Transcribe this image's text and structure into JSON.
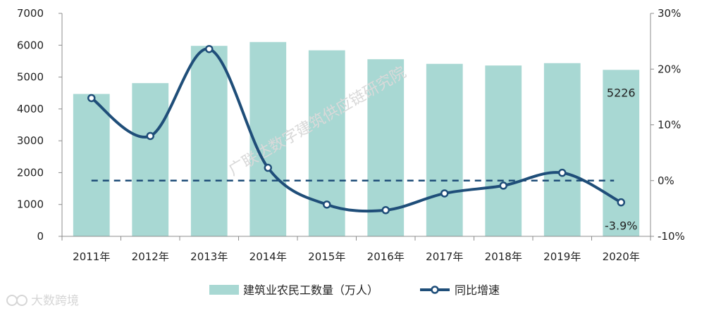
{
  "chart_data": {
    "type": "bar",
    "categories": [
      "2011年",
      "2012年",
      "2013年",
      "2014年",
      "2015年",
      "2016年",
      "2017年",
      "2018年",
      "2019年",
      "2020年"
    ],
    "series": [
      {
        "name": "建筑业农民工数量（万人）",
        "type": "bar",
        "axis": "left",
        "values": [
          4470,
          4810,
          5980,
          6100,
          5840,
          5560,
          5415,
          5363,
          5437,
          5226
        ]
      },
      {
        "name": "同比增速",
        "type": "line",
        "axis": "right",
        "unit": "%",
        "values": [
          14.8,
          8.0,
          23.6,
          2.3,
          -4.3,
          -5.3,
          -2.3,
          -0.9,
          1.4,
          -3.9
        ]
      }
    ],
    "y_left": {
      "range": [
        0,
        7000
      ],
      "ticks": [
        0,
        1000,
        2000,
        3000,
        4000,
        5000,
        6000,
        7000
      ]
    },
    "y_right": {
      "range": [
        -10,
        30
      ],
      "ticks": [
        "-10%",
        "0%",
        "10%",
        "20%",
        "30%"
      ]
    },
    "annotations": [
      "5226",
      "-3.9%"
    ],
    "legend_position": "bottom",
    "colors": {
      "bar": "#a8d8d3",
      "line": "#1f4e79",
      "zero_line": "#1f4e79"
    }
  },
  "watermark": "广联达数字建筑供应链研究院",
  "brand_logo_text": "大数跨境"
}
